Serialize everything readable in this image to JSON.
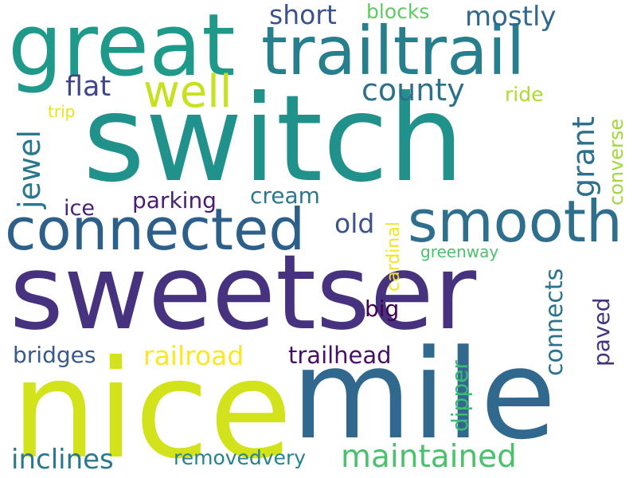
{
  "words": [
    {
      "text": "sweetser",
      "color": "#46327e"
    },
    {
      "text": "switch",
      "color": "#21918c"
    },
    {
      "text": "nice",
      "color": "#d2e21b"
    },
    {
      "text": "mile",
      "color": "#31688e"
    },
    {
      "text": "great",
      "color": "#1f9a8a"
    },
    {
      "text": "trailtrail",
      "color": "#277f8e"
    },
    {
      "text": "connected",
      "color": "#2c5f8a"
    },
    {
      "text": "smooth",
      "color": "#2e6f8e"
    },
    {
      "text": "maintained",
      "color": "#4ac16d"
    },
    {
      "text": "well",
      "color": "#c8e020"
    },
    {
      "text": "county",
      "color": "#2d708e"
    },
    {
      "text": "mostly",
      "color": "#31688e"
    },
    {
      "text": "short",
      "color": "#3b528b"
    },
    {
      "text": "flat",
      "color": "#3f4788"
    },
    {
      "text": "blocks",
      "color": "#5ec962"
    },
    {
      "text": "ride",
      "color": "#addc30"
    },
    {
      "text": "trip",
      "color": "#e5e419"
    },
    {
      "text": "jewel",
      "color": "#2a788e"
    },
    {
      "text": "grant",
      "color": "#2d708e"
    },
    {
      "text": "converse",
      "color": "#a0da39"
    },
    {
      "text": "parking",
      "color": "#481d6f"
    },
    {
      "text": "cream",
      "color": "#2a788e"
    },
    {
      "text": "ice",
      "color": "#482173"
    },
    {
      "text": "old",
      "color": "#3b528b"
    },
    {
      "text": "cardinal",
      "color": "#f1e51d"
    },
    {
      "text": "greenway",
      "color": "#4ac16d"
    },
    {
      "text": "big",
      "color": "#440154"
    },
    {
      "text": "bridges",
      "color": "#38598c"
    },
    {
      "text": "railroad",
      "color": "#fde725"
    },
    {
      "text": "trailhead",
      "color": "#471063"
    },
    {
      "text": "connects",
      "color": "#2c728e"
    },
    {
      "text": "paved",
      "color": "#46327e"
    },
    {
      "text": "dipper",
      "color": "#3bbb75"
    },
    {
      "text": "inclines",
      "color": "#2a788e"
    },
    {
      "text": "removedvery",
      "color": "#26828e"
    }
  ]
}
